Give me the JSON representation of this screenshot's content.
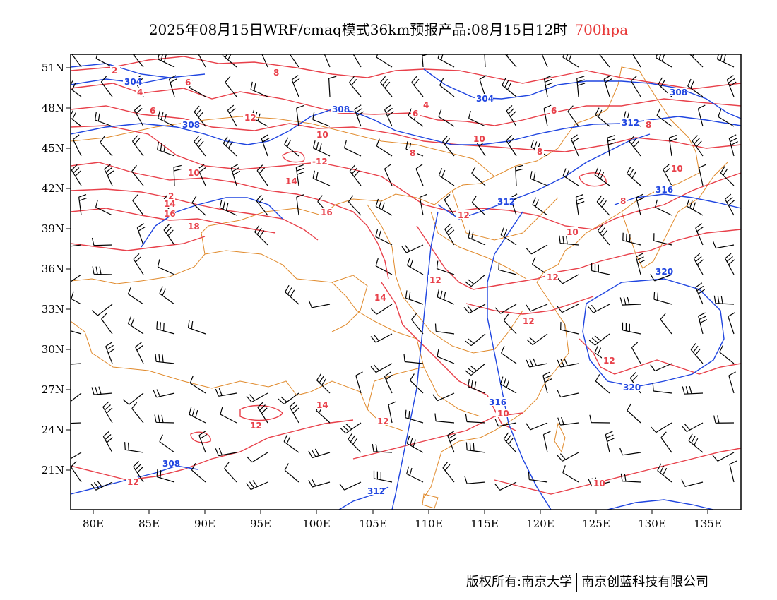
{
  "title": {
    "main": "2025年08月15日WRF/cmaq模式36km预报产品:08月15日12时",
    "level": "700hpa"
  },
  "colors": {
    "temperature": "#e8404a",
    "height": "#1f45e0",
    "border": "#e08a2c",
    "wind": "#000000"
  },
  "axes": {
    "lat_labels": [
      "51N",
      "48N",
      "45N",
      "42N",
      "39N",
      "36N",
      "33N",
      "30N",
      "27N",
      "24N",
      "21N"
    ],
    "lon_labels": [
      "80E",
      "85E",
      "90E",
      "95E",
      "100E",
      "105E",
      "110E",
      "115E",
      "120E",
      "125E",
      "130E",
      "135E"
    ]
  },
  "contour_labels": {
    "temperature": [
      "2",
      "4",
      "6",
      "8",
      "6",
      "4",
      "6",
      "8",
      "8",
      "6",
      "10",
      "12",
      "10",
      "-12",
      "14",
      "10",
      "8",
      "10",
      "2",
      "14",
      "16",
      "18",
      "16",
      "12",
      "12",
      "8",
      "10",
      "14",
      "12",
      "12",
      "14",
      "12",
      "12",
      "10",
      "12",
      "10",
      "12"
    ],
    "height": [
      "304",
      "308",
      "304",
      "308",
      "308",
      "312",
      "316",
      "312",
      "320",
      "320",
      "316",
      "308",
      "312"
    ]
  },
  "footer": {
    "left": "版权所有:南京大学",
    "right": "南京创蓝科技有限公司"
  }
}
